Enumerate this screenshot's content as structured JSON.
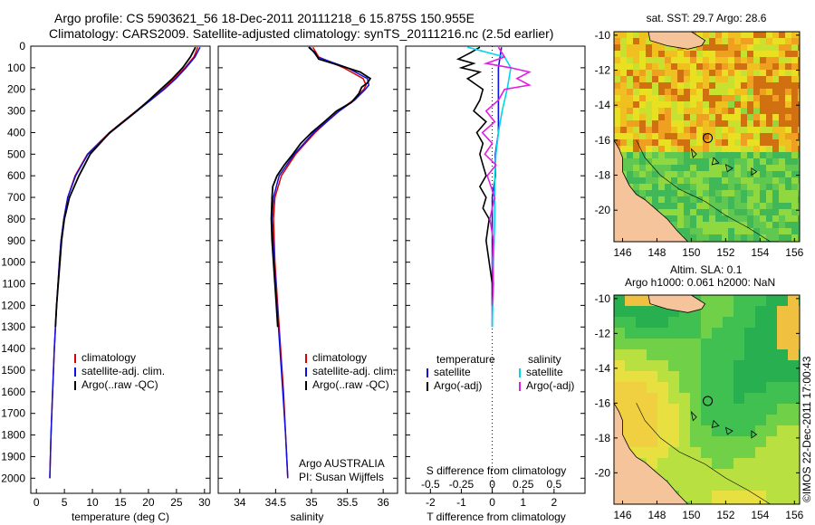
{
  "header": {
    "line1": "Argo profile: CS 5903621_56 18-Dec-2011 20111218_6 15.875S 150.955E",
    "line2": "Climatology: CARS2009. Satellite-adjusted climatology: synTS_20111216.nc (2.5d earlier)"
  },
  "copyright": "©IMOS 22-Dec-2011 17:00:43",
  "colors": {
    "climatology": "#dd0000",
    "satellite": "#1010dd",
    "argo": "#000000",
    "sal_satellite": "#00d8e8",
    "sal_argo": "#e020e0"
  },
  "chart_data": [
    {
      "type": "line",
      "name": "temperature",
      "xlabel": "temperature (deg C)",
      "ylabel": "",
      "xlim": [
        -1,
        31
      ],
      "ylim": [
        2070,
        0
      ],
      "xticks": [
        0,
        5,
        10,
        15,
        20,
        25,
        30
      ],
      "yticks": [
        0,
        100,
        200,
        300,
        400,
        500,
        600,
        700,
        800,
        900,
        1000,
        1100,
        1200,
        1300,
        1400,
        1500,
        1600,
        1700,
        1800,
        1900,
        2000
      ],
      "legend": [
        "climatology",
        "satellite-adj. clim.",
        "Argo(..raw -QC)"
      ],
      "series": [
        {
          "name": "climatology",
          "depth": [
            5,
            50,
            100,
            150,
            200,
            300,
            400,
            500,
            600,
            700,
            800,
            900,
            1000,
            1200,
            1400,
            1600,
            1800,
            2000
          ],
          "values": [
            28.8,
            28.1,
            26.5,
            24.7,
            22.6,
            17.8,
            13.0,
            9.1,
            6.9,
            5.6,
            4.9,
            4.4,
            4.1,
            3.6,
            3.2,
            2.9,
            2.6,
            2.4
          ]
        },
        {
          "name": "satellite-adj. clim.",
          "depth": [
            5,
            50,
            100,
            150,
            200,
            300,
            400,
            500,
            600,
            700,
            800,
            900,
            1000,
            1200,
            1400,
            1600,
            1800,
            2000
          ],
          "values": [
            29.2,
            28.3,
            26.7,
            24.9,
            22.8,
            18.0,
            13.2,
            9.2,
            7.0,
            5.6,
            4.9,
            4.4,
            4.1,
            3.6,
            3.2,
            2.9,
            2.6,
            2.4
          ]
        },
        {
          "name": "Argo(..raw -QC)",
          "depth": [
            5,
            50,
            100,
            150,
            200,
            250,
            300,
            400,
            500,
            550,
            600,
            700,
            800,
            900,
            1000,
            1100,
            1200,
            1300
          ],
          "values": [
            28.4,
            27.5,
            26.1,
            24.3,
            22.2,
            20.1,
            17.9,
            13.1,
            9.6,
            8.6,
            7.6,
            5.9,
            5.0,
            4.5,
            4.2,
            3.9,
            3.6,
            3.4
          ]
        }
      ]
    },
    {
      "type": "line",
      "name": "salinity",
      "xlabel": "salinity",
      "xlim": [
        33.7,
        36.2
      ],
      "ylim": [
        2070,
        0
      ],
      "xticks": [
        34,
        34.5,
        35,
        35.5,
        36
      ],
      "legend": [
        "climatology",
        "satellite-adj. clim.",
        "Argo(..raw -QC)"
      ],
      "footer_lines": [
        "Argo AUSTRALIA",
        "PI: Susan Wijffels"
      ],
      "series": [
        {
          "name": "climatology",
          "depth": [
            5,
            50,
            100,
            150,
            180,
            200,
            250,
            300,
            400,
            500,
            600,
            700,
            800,
            1000,
            1200,
            1400,
            1600,
            1800,
            2000
          ],
          "values": [
            35.02,
            35.1,
            35.45,
            35.72,
            35.76,
            35.73,
            35.58,
            35.38,
            35.05,
            34.78,
            34.58,
            34.49,
            34.47,
            34.49,
            34.53,
            34.57,
            34.61,
            34.64,
            34.67
          ]
        },
        {
          "name": "satellite-adj. clim.",
          "depth": [
            5,
            50,
            100,
            150,
            180,
            200,
            250,
            300,
            400,
            500,
            600,
            700,
            800,
            1000,
            1200,
            1400,
            1600,
            1800,
            2000
          ],
          "values": [
            34.98,
            35.08,
            35.5,
            35.78,
            35.8,
            35.75,
            35.6,
            35.39,
            35.03,
            34.76,
            34.55,
            34.47,
            34.45,
            34.48,
            34.52,
            34.56,
            34.6,
            34.64,
            34.67
          ]
        },
        {
          "name": "Argo(..raw -QC)",
          "depth": [
            5,
            30,
            60,
            90,
            120,
            150,
            170,
            190,
            220,
            260,
            300,
            350,
            400,
            450,
            500,
            550,
            600,
            650,
            700,
            800,
            900,
            1000,
            1100,
            1200,
            1300
          ],
          "values": [
            34.96,
            35.05,
            35.1,
            35.4,
            35.68,
            35.82,
            35.78,
            35.7,
            35.66,
            35.56,
            35.35,
            35.18,
            35.0,
            34.85,
            34.74,
            34.62,
            34.52,
            34.46,
            34.45,
            34.44,
            34.45,
            34.47,
            34.49,
            34.51,
            34.53
          ]
        }
      ]
    },
    {
      "type": "line",
      "name": "difference",
      "xlabel": "T difference from climatology",
      "xlabel_top": "S difference from climatology",
      "xlim": [
        -2.8,
        3.0
      ],
      "ylim": [
        2070,
        0
      ],
      "xticks": [
        -2,
        -1,
        0,
        1,
        2
      ],
      "xtick_labels": [
        "-2",
        "-1",
        "0",
        "1",
        "2"
      ],
      "sticks": [
        -0.5,
        -0.25,
        0,
        0.25,
        0.5
      ],
      "stick_labels": [
        "-0.5",
        "-0.25",
        "0",
        "0.25",
        "0.5"
      ],
      "legend_left_title": "temperature",
      "legend_right_title": "salinity",
      "legend_left": [
        "satellite",
        "Argo(-adj)"
      ],
      "legend_right": [
        "satellite",
        "Argo(-adj)"
      ],
      "series": [
        {
          "name": "T satellite",
          "depth": [
            5,
            100,
            200,
            300,
            400,
            500,
            600,
            700,
            800,
            1000,
            1200,
            1300
          ],
          "values": [
            0.3,
            0.2,
            0.2,
            0.2,
            0.2,
            0.1,
            0.1,
            0.0,
            0.0,
            0.0,
            0.0,
            0.0
          ]
        },
        {
          "name": "T Argo(-adj)",
          "depth": [
            5,
            30,
            60,
            80,
            100,
            120,
            150,
            180,
            200,
            250,
            300,
            350,
            400,
            450,
            500,
            550,
            600,
            650,
            700,
            750,
            800,
            900,
            1000,
            1100,
            1200
          ],
          "values": [
            -0.4,
            -0.7,
            -1.1,
            -0.6,
            -1.0,
            -0.4,
            -0.8,
            -0.5,
            -0.3,
            -0.4,
            -0.6,
            -0.2,
            -0.5,
            -0.3,
            -0.4,
            -0.3,
            -0.2,
            -0.4,
            -0.2,
            -0.3,
            -0.1,
            -0.2,
            -0.1,
            0.0,
            0.0
          ]
        },
        {
          "name": "S satellite",
          "depth": [
            5,
            50,
            100,
            200,
            300,
            400,
            500,
            600,
            800,
            1000,
            1300
          ],
          "values": [
            -0.2,
            0.1,
            0.15,
            0.12,
            0.08,
            0.05,
            0.03,
            0.02,
            0.02,
            0.01,
            0.0
          ]
        },
        {
          "name": "S Argo(-adj)",
          "depth": [
            5,
            50,
            80,
            100,
            120,
            150,
            180,
            200,
            250,
            300,
            350,
            400,
            450,
            500,
            550,
            600,
            700,
            800,
            900,
            1000,
            1100,
            1200
          ],
          "values": [
            0.05,
            0.1,
            -0.05,
            0.15,
            0.3,
            0.2,
            0.3,
            0.1,
            0.05,
            -0.05,
            0.02,
            -0.08,
            0.0,
            -0.06,
            0.03,
            -0.04,
            0.02,
            -0.02,
            0.01,
            0.0,
            0.01,
            0.0
          ]
        }
      ]
    },
    {
      "type": "heatmap",
      "name": "sst_map",
      "title": "sat. SST: 29.7  Argo: 28.6",
      "xticks": [
        146,
        148,
        150,
        152,
        154,
        156
      ],
      "yticks": [
        -10,
        -12,
        -14,
        -16,
        -18,
        -20
      ],
      "xlim": [
        145.5,
        156.3
      ],
      "ylim": [
        -21.8,
        -9.8
      ],
      "argo_marker": {
        "lon": 150.955,
        "lat": -15.875
      }
    },
    {
      "type": "heatmap",
      "name": "sla_map",
      "title_line1": "Altim. SLA: 0.1",
      "title_line2": "Argo h1000: 0.061 h2000: NaN",
      "xticks": [
        146,
        148,
        150,
        152,
        154,
        156
      ],
      "yticks": [
        -10,
        -12,
        -14,
        -16,
        -18,
        -20
      ],
      "xlim": [
        145.5,
        156.3
      ],
      "ylim": [
        -21.8,
        -9.8
      ],
      "argo_marker": {
        "lon": 150.955,
        "lat": -15.875
      }
    }
  ]
}
